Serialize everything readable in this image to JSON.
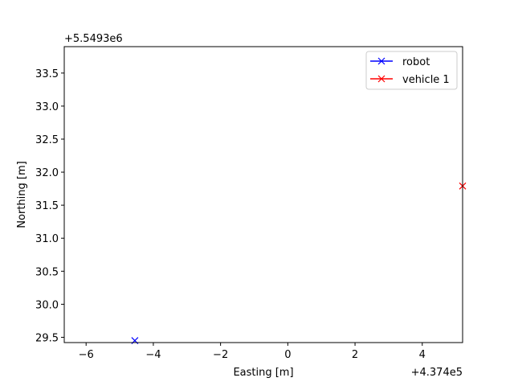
{
  "chart_data": {
    "type": "scatter",
    "xlabel": "Easting [m]",
    "ylabel": "Northing [m]",
    "x_offset_label": "+4.374e5",
    "y_offset_label": "+5.5493e6",
    "xlim": [
      -6.65,
      5.2
    ],
    "ylim": [
      29.42,
      33.9
    ],
    "x_ticks": [
      -6,
      -4,
      -2,
      0,
      2,
      4
    ],
    "x_tick_labels": [
      "−6",
      "−4",
      "−2",
      "0",
      "2",
      "4"
    ],
    "y_ticks": [
      29.5,
      30.0,
      30.5,
      31.0,
      31.5,
      32.0,
      32.5,
      33.0,
      33.5
    ],
    "y_tick_labels": [
      "29.5",
      "30.0",
      "30.5",
      "31.0",
      "31.5",
      "32.0",
      "32.5",
      "33.0",
      "33.5"
    ],
    "grid": false,
    "legend_position": "top-right",
    "series": [
      {
        "name": "robot",
        "color": "#0000ff",
        "marker": "x",
        "x": [
          -4.55
        ],
        "y": [
          29.45
        ]
      },
      {
        "name": "vehicle 1",
        "color": "#ff0000",
        "marker": "x",
        "x": [
          5.2
        ],
        "y": [
          31.79
        ]
      }
    ]
  }
}
